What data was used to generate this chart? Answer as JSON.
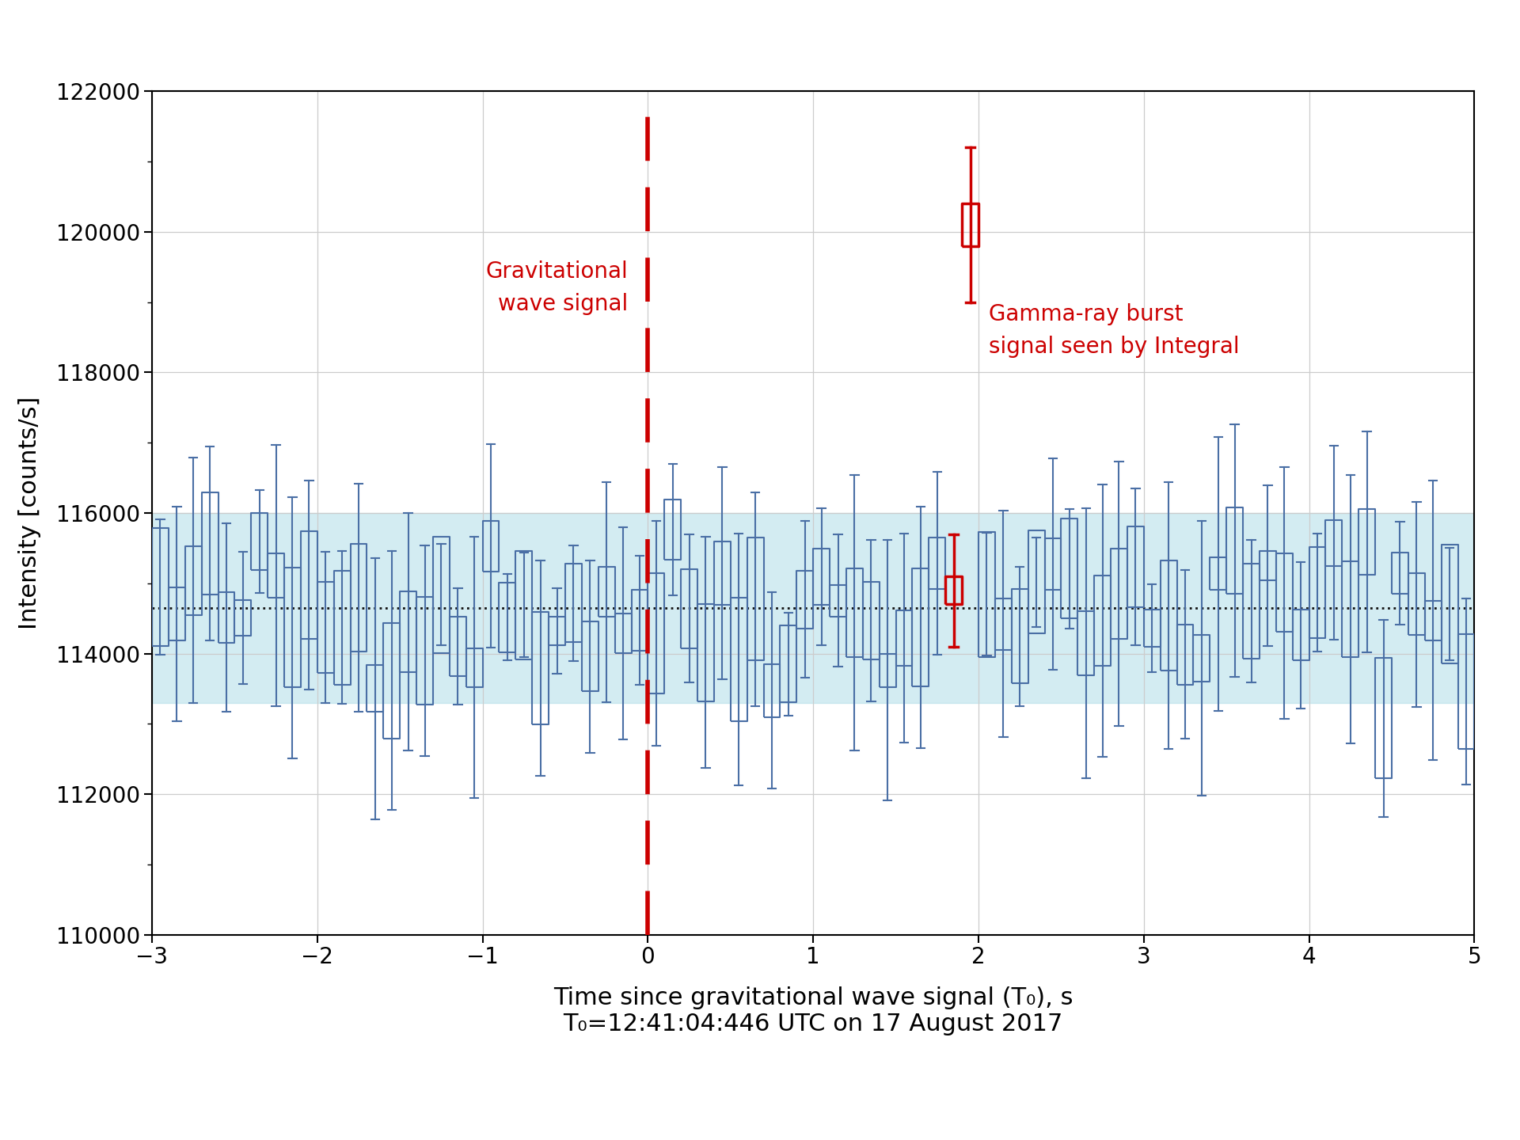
{
  "xlim": [
    -3.0,
    5.0
  ],
  "ylim": [
    110000,
    122000
  ],
  "yticks": [
    110000,
    112000,
    114000,
    116000,
    118000,
    120000,
    122000
  ],
  "xticks": [
    -3,
    -2,
    -1,
    0,
    1,
    2,
    3,
    4,
    5
  ],
  "mean_value": 114650,
  "band_low": 113300,
  "band_high": 116000,
  "gw_time": 0.0,
  "grb_time": 1.88,
  "ylabel": "Intensity [counts/s]",
  "xlabel_line1": "Time since gravitational wave signal (T₀), s",
  "xlabel_line2": "T₀=12:41:04:446 UTC on 17 August 2017",
  "gw_label_line1": "Gravitational",
  "gw_label_line2": "wave signal",
  "grb_label_line1": "Gamma-ray burst",
  "grb_label_line2": "signal seen by Integral",
  "blue_color": "#4a6fa5",
  "red_color": "#cc0000",
  "band_color": "#b0dde8",
  "mean_color": "#111111",
  "background_color": "#ffffff",
  "bin_width": 0.1,
  "seed": 42,
  "n_bins": 80,
  "label_fontsize": 22,
  "tick_fontsize": 20,
  "annotation_fontsize": 20
}
